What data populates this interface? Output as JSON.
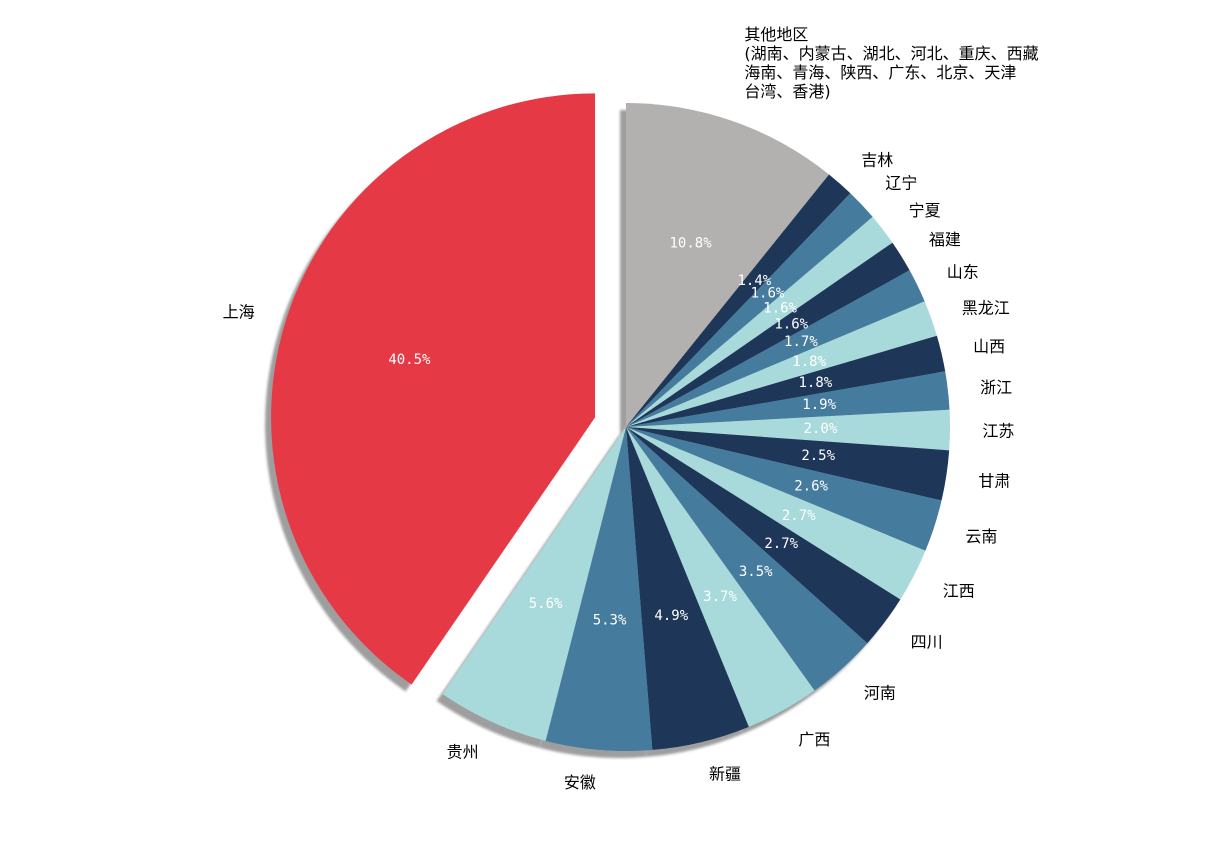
{
  "chart_data": {
    "type": "pie",
    "title": "",
    "start_angle_deg": 90,
    "direction": "clockwise",
    "shadow": true,
    "legend": "none",
    "categories": [
      "其他地区",
      "吉林",
      "辽宁",
      "宁夏",
      "福建",
      "山东",
      "黑龙江",
      "山西",
      "浙江",
      "江苏",
      "甘肃",
      "云南",
      "江西",
      "四川",
      "河南",
      "广西",
      "新疆",
      "安徽",
      "贵州",
      "上海"
    ],
    "category_label_lines": [
      [
        "其他地区",
        "(湖南、内蒙古、湖北、河北、重庆、西藏",
        "海南、青海、陕西、广东、北京、天津",
        "台湾、香港)"
      ],
      [
        "吉林"
      ],
      [
        "辽宁"
      ],
      [
        "宁夏"
      ],
      [
        "福建"
      ],
      [
        "山东"
      ],
      [
        "黑龙江"
      ],
      [
        "山西"
      ],
      [
        "浙江"
      ],
      [
        "江苏"
      ],
      [
        "甘肃"
      ],
      [
        "云南"
      ],
      [
        "江西"
      ],
      [
        "四川"
      ],
      [
        "河南"
      ],
      [
        "广西"
      ],
      [
        "新疆"
      ],
      [
        "安徽"
      ],
      [
        "贵州"
      ],
      [
        "上海"
      ]
    ],
    "values": [
      10.8,
      1.4,
      1.6,
      1.6,
      1.6,
      1.7,
      1.8,
      1.8,
      1.9,
      2.0,
      2.5,
      2.6,
      2.7,
      2.7,
      3.5,
      3.7,
      4.9,
      5.3,
      5.6,
      40.5
    ],
    "value_labels": [
      "10.8%",
      "1.4%",
      "1.6%",
      "1.6%",
      "1.6%",
      "1.7%",
      "1.8%",
      "1.8%",
      "1.9%",
      "2.0%",
      "2.5%",
      "2.6%",
      "2.7%",
      "2.7%",
      "3.5%",
      "3.7%",
      "4.9%",
      "5.3%",
      "5.6%",
      "40.5%"
    ],
    "colors": [
      "#b3b1b0",
      "#1e3658",
      "#457b9d",
      "#a8dadc",
      "#1e3658",
      "#457b9d",
      "#a8dadc",
      "#1e3658",
      "#457b9d",
      "#a8dadc",
      "#1e3658",
      "#457b9d",
      "#a8dadc",
      "#1e3658",
      "#457b9d",
      "#a8dadc",
      "#1e3658",
      "#457b9d",
      "#a8dadc",
      "#e63946"
    ],
    "explode": [
      0,
      0,
      0,
      0,
      0,
      0,
      0,
      0,
      0,
      0,
      0,
      0,
      0,
      0,
      0,
      0,
      0,
      0,
      0,
      0.1
    ]
  }
}
